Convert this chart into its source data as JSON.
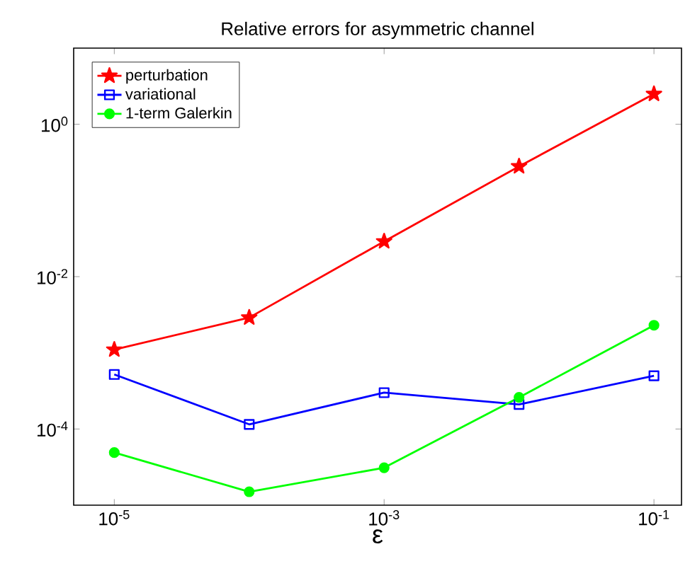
{
  "chart_data": {
    "type": "line",
    "title": "Relative errors for asymmetric channel",
    "xlabel": "ε",
    "x": [
      1e-05,
      0.0001,
      0.001,
      0.01,
      0.1
    ],
    "series": [
      {
        "name": "perturbation",
        "color": "#ff0000",
        "marker": "star",
        "values": [
          0.0011,
          0.0029,
          0.029,
          0.28,
          2.5
        ]
      },
      {
        "name": "variational",
        "color": "#0000ff",
        "marker": "square",
        "values": [
          0.00052,
          0.000115,
          0.0003,
          0.00021,
          0.0005
        ]
      },
      {
        "name": "1-term Galerkin",
        "color": "#00ff00",
        "marker": "circle",
        "values": [
          4.9e-05,
          1.5e-05,
          3.1e-05,
          0.00026,
          0.0023
        ]
      }
    ],
    "log": "xy",
    "xlim": [
      5e-06,
      0.16
    ],
    "ylim": [
      1e-05,
      10
    ],
    "xticks": [
      {
        "value": 1e-05,
        "label": "10$^{-5}$"
      },
      {
        "value": 0.001,
        "label": "10$^{-3}$"
      },
      {
        "value": 0.1,
        "label": "10$^{-1}$"
      }
    ],
    "yticks": [
      {
        "value": 0.0001,
        "label": "10$^{-4}$"
      },
      {
        "value": 0.01,
        "label": "10$^{-2}$"
      },
      {
        "value": 1,
        "label": "10$^{0}$"
      }
    ],
    "legend": "top left",
    "line_style": "solid"
  }
}
